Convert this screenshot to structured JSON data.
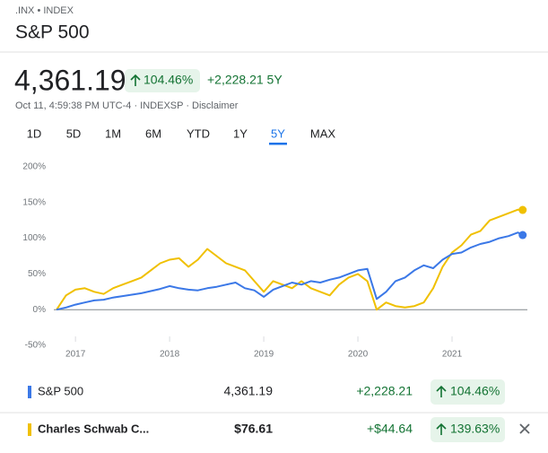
{
  "header": {
    "ticker": ".INX • INDEX",
    "title": "S&P 500",
    "price": "4,361.19",
    "change_percent": "104.46%",
    "change": "+2,228.21 5Y",
    "meta": "Oct 11, 4:59:38 PM UTC-4 · INDEXSP · Disclaimer"
  },
  "tabs": [
    "1D",
    "5D",
    "1M",
    "6M",
    "YTD",
    "1Y",
    "5Y",
    "MAX"
  ],
  "active_tab": 6,
  "chart_data": {
    "type": "line",
    "x": [
      2016.8,
      2016.9,
      2017.0,
      2017.1,
      2017.2,
      2017.3,
      2017.4,
      2017.5,
      2017.6,
      2017.7,
      2017.8,
      2017.9,
      2018.0,
      2018.1,
      2018.2,
      2018.3,
      2018.4,
      2018.5,
      2018.6,
      2018.7,
      2018.8,
      2018.9,
      2019.0,
      2019.1,
      2019.2,
      2019.3,
      2019.4,
      2019.5,
      2019.6,
      2019.7,
      2019.8,
      2019.9,
      2020.0,
      2020.1,
      2020.2,
      2020.3,
      2020.4,
      2020.5,
      2020.6,
      2020.7,
      2020.8,
      2020.9,
      2021.0,
      2021.1,
      2021.2,
      2021.3,
      2021.4,
      2021.5,
      2021.6,
      2021.7,
      2021.75
    ],
    "series": [
      {
        "name": "S&P 500",
        "color": "#3b78e7",
        "values": [
          0,
          3,
          7,
          10,
          13,
          14,
          17,
          19,
          21,
          23,
          26,
          29,
          33,
          30,
          28,
          27,
          30,
          32,
          35,
          38,
          30,
          27,
          18,
          28,
          33,
          38,
          35,
          40,
          38,
          42,
          45,
          50,
          55,
          57,
          15,
          25,
          40,
          45,
          55,
          62,
          58,
          70,
          78,
          80,
          87,
          92,
          95,
          100,
          103,
          108,
          104.46
        ]
      },
      {
        "name": "Charles Schwab C...",
        "color": "#f0c000",
        "values": [
          0,
          20,
          28,
          30,
          25,
          22,
          30,
          35,
          40,
          45,
          55,
          65,
          70,
          72,
          60,
          70,
          85,
          75,
          65,
          60,
          55,
          40,
          25,
          40,
          35,
          30,
          40,
          30,
          25,
          20,
          35,
          45,
          50,
          40,
          0,
          10,
          5,
          3,
          5,
          10,
          30,
          60,
          80,
          90,
          105,
          110,
          125,
          130,
          135,
          140,
          139.63
        ]
      }
    ],
    "xlim": [
      2016.77,
      2021.8
    ],
    "xticks": [
      2017,
      2018,
      2019,
      2020,
      2021
    ],
    "ylim": [
      -55,
      210
    ],
    "yticks": [
      {
        "value": -50,
        "label": "-50%"
      },
      {
        "value": 0,
        "label": "0%"
      },
      {
        "value": 50,
        "label": "50%"
      },
      {
        "value": 100,
        "label": "100%"
      },
      {
        "value": 150,
        "label": "150%"
      },
      {
        "value": 200,
        "label": "200%"
      }
    ]
  },
  "comparisons": [
    {
      "price": "4,361.19",
      "change": "+2,228.21",
      "percent": "104.46%"
    },
    {
      "price": "$76.61",
      "change": "+$44.64",
      "percent": "139.63%"
    }
  ]
}
